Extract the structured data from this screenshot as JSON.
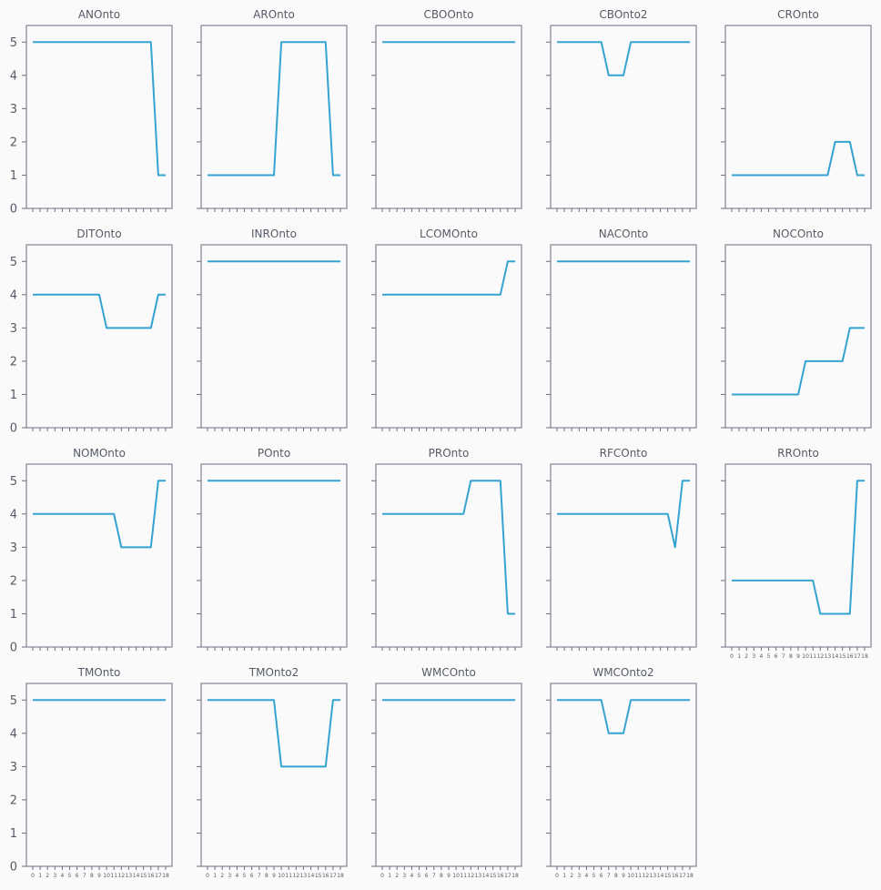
{
  "chart_data": {
    "type": "line",
    "layout": "small-multiples",
    "x": [
      0,
      1,
      2,
      3,
      4,
      5,
      6,
      7,
      8,
      9,
      10,
      11,
      12,
      13,
      14,
      15,
      16,
      17,
      18
    ],
    "ylim": [
      0,
      5.5
    ],
    "yticks": [
      0,
      1,
      2,
      3,
      4,
      5
    ],
    "color": "#35a3d1",
    "panels": [
      {
        "title": "ANOnto",
        "values": [
          5,
          5,
          5,
          5,
          5,
          5,
          5,
          5,
          5,
          5,
          5,
          5,
          5,
          5,
          5,
          5,
          5,
          1,
          1
        ]
      },
      {
        "title": "AROnto",
        "values": [
          1,
          1,
          1,
          1,
          1,
          1,
          1,
          1,
          1,
          1,
          5,
          5,
          5,
          5,
          5,
          5,
          5,
          1,
          1
        ]
      },
      {
        "title": "CBOOnto",
        "values": [
          5,
          5,
          5,
          5,
          5,
          5,
          5,
          5,
          5,
          5,
          5,
          5,
          5,
          5,
          5,
          5,
          5,
          5,
          5
        ]
      },
      {
        "title": "CBOnto2",
        "values": [
          5,
          5,
          5,
          5,
          5,
          5,
          5,
          4,
          4,
          4,
          5,
          5,
          5,
          5,
          5,
          5,
          5,
          5,
          5
        ]
      },
      {
        "title": "CROnto",
        "values": [
          1,
          1,
          1,
          1,
          1,
          1,
          1,
          1,
          1,
          1,
          1,
          1,
          1,
          1,
          2,
          2,
          2,
          1,
          1
        ]
      },
      {
        "title": "DITOnto",
        "values": [
          4,
          4,
          4,
          4,
          4,
          4,
          4,
          4,
          4,
          4,
          3,
          3,
          3,
          3,
          3,
          3,
          3,
          4,
          4
        ]
      },
      {
        "title": "INROnto",
        "values": [
          5,
          5,
          5,
          5,
          5,
          5,
          5,
          5,
          5,
          5,
          5,
          5,
          5,
          5,
          5,
          5,
          5,
          5,
          5
        ]
      },
      {
        "title": "LCOMOnto",
        "values": [
          4,
          4,
          4,
          4,
          4,
          4,
          4,
          4,
          4,
          4,
          4,
          4,
          4,
          4,
          4,
          4,
          4,
          5,
          5
        ]
      },
      {
        "title": "NACOnto",
        "values": [
          5,
          5,
          5,
          5,
          5,
          5,
          5,
          5,
          5,
          5,
          5,
          5,
          5,
          5,
          5,
          5,
          5,
          5,
          5
        ]
      },
      {
        "title": "NOCOnto",
        "values": [
          1,
          1,
          1,
          1,
          1,
          1,
          1,
          1,
          1,
          1,
          2,
          2,
          2,
          2,
          2,
          2,
          3,
          3,
          3
        ]
      },
      {
        "title": "NOMOnto",
        "values": [
          4,
          4,
          4,
          4,
          4,
          4,
          4,
          4,
          4,
          4,
          4,
          4,
          3,
          3,
          3,
          3,
          3,
          5,
          5
        ]
      },
      {
        "title": "POnto",
        "values": [
          5,
          5,
          5,
          5,
          5,
          5,
          5,
          5,
          5,
          5,
          5,
          5,
          5,
          5,
          5,
          5,
          5,
          5,
          5
        ]
      },
      {
        "title": "PROnto",
        "values": [
          4,
          4,
          4,
          4,
          4,
          4,
          4,
          4,
          4,
          4,
          4,
          4,
          5,
          5,
          5,
          5,
          5,
          1,
          1
        ]
      },
      {
        "title": "RFCOnto",
        "values": [
          4,
          4,
          4,
          4,
          4,
          4,
          4,
          4,
          4,
          4,
          4,
          4,
          4,
          4,
          4,
          4,
          3,
          5,
          5
        ]
      },
      {
        "title": "RROnto",
        "values": [
          2,
          2,
          2,
          2,
          2,
          2,
          2,
          2,
          2,
          2,
          2,
          2,
          1,
          1,
          1,
          1,
          1,
          5,
          5
        ]
      },
      {
        "title": "TMOnto",
        "values": [
          5,
          5,
          5,
          5,
          5,
          5,
          5,
          5,
          5,
          5,
          5,
          5,
          5,
          5,
          5,
          5,
          5,
          5,
          5
        ]
      },
      {
        "title": "TMOnto2",
        "values": [
          5,
          5,
          5,
          5,
          5,
          5,
          5,
          5,
          5,
          5,
          3,
          3,
          3,
          3,
          3,
          3,
          3,
          5,
          5
        ]
      },
      {
        "title": "WMCOnto",
        "values": [
          5,
          5,
          5,
          5,
          5,
          5,
          5,
          5,
          5,
          5,
          5,
          5,
          5,
          5,
          5,
          5,
          5,
          5,
          5
        ]
      },
      {
        "title": "WMCOnto2",
        "values": [
          5,
          5,
          5,
          5,
          5,
          5,
          5,
          4,
          4,
          4,
          5,
          5,
          5,
          5,
          5,
          5,
          5,
          5,
          5
        ]
      }
    ]
  }
}
